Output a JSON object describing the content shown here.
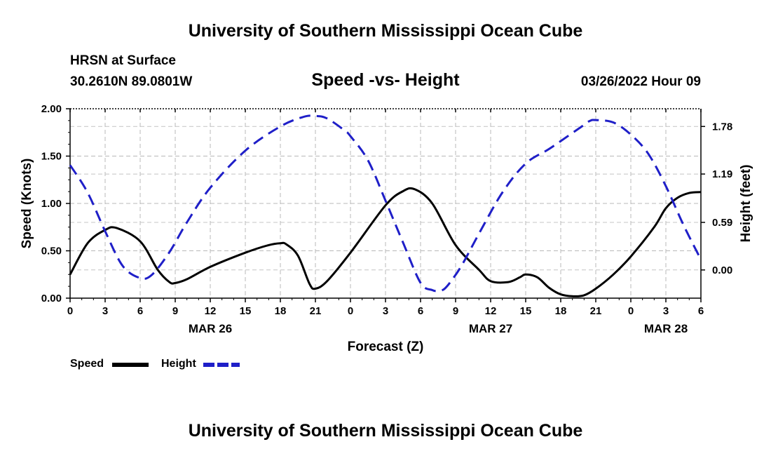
{
  "header": {
    "title": "University of Southern Mississippi Ocean Cube",
    "station": "HRSN at Surface",
    "coordinates": "30.2610N  89.0801W",
    "subtitle": "Speed -vs- Height",
    "datetime": "03/26/2022 Hour 09",
    "footer_title": "University of Southern Mississippi Ocean Cube"
  },
  "chart_data": {
    "type": "line",
    "title": "Speed -vs- Height",
    "xlabel": "Forecast (Z)",
    "ylabel": "Speed (Knots)",
    "y2label": "Height (feet)",
    "x_unit": "forecast hours from 00Z MAR 26",
    "xlim": [
      0,
      54
    ],
    "ylim": [
      0,
      2.0
    ],
    "y2lim": [
      -0.35,
      2.0
    ],
    "grid": true,
    "x_ticks": [
      0,
      3,
      6,
      9,
      12,
      15,
      18,
      21,
      24,
      27,
      30,
      33,
      36,
      39,
      42,
      45,
      48,
      51,
      54
    ],
    "x_tick_labels": [
      "0",
      "3",
      "6",
      "9",
      "12",
      "15",
      "18",
      "21",
      "0",
      "3",
      "6",
      "9",
      "12",
      "15",
      "18",
      "21",
      "0",
      "3",
      "6"
    ],
    "date_labels": [
      {
        "x": 12,
        "label": "MAR 26"
      },
      {
        "x": 36,
        "label": "MAR 27"
      },
      {
        "x": 51,
        "label": "MAR 28"
      }
    ],
    "y_ticks": [
      0,
      0.5,
      1.0,
      1.5,
      2.0
    ],
    "y_tick_labels": [
      "0.00",
      "0.50",
      "1.00",
      "1.50",
      "2.00"
    ],
    "y2_ticks": [
      0,
      0.59,
      1.19,
      1.78
    ],
    "y2_tick_labels": [
      "0.00",
      "0.59",
      "1.19",
      "1.78"
    ],
    "legend_position": "bottom-left",
    "series": [
      {
        "name": "Speed",
        "axis": "left",
        "color": "#000000",
        "style": "solid",
        "x": [
          0,
          1.5,
          3,
          4,
          6,
          7.5,
          8.5,
          9,
          10,
          12,
          15,
          17,
          18,
          18.5,
          19.5,
          20.5,
          21,
          22,
          24,
          27,
          28.5,
          29.5,
          31,
          33,
          35,
          36,
          37.5,
          38.5,
          39,
          40,
          41,
          42,
          43,
          44,
          45,
          46.5,
          48,
          50,
          51,
          52,
          53,
          54
        ],
        "values": [
          0.25,
          0.58,
          0.72,
          0.74,
          0.6,
          0.3,
          0.17,
          0.16,
          0.2,
          0.33,
          0.48,
          0.56,
          0.58,
          0.57,
          0.45,
          0.15,
          0.1,
          0.18,
          0.48,
          0.98,
          1.13,
          1.15,
          1.0,
          0.56,
          0.3,
          0.18,
          0.17,
          0.22,
          0.25,
          0.22,
          0.11,
          0.04,
          0.02,
          0.03,
          0.1,
          0.25,
          0.44,
          0.75,
          0.95,
          1.06,
          1.11,
          1.12
        ]
      },
      {
        "name": "Height",
        "axis": "right",
        "color": "#1f1fc8",
        "style": "dashed",
        "x": [
          0,
          1.5,
          3,
          4.5,
          6,
          7,
          8.5,
          10,
          12,
          15,
          18,
          20,
          21,
          22,
          23.5,
          24,
          25.5,
          27,
          28.5,
          30,
          31,
          31.5,
          32,
          32.5,
          33.5,
          35,
          37,
          39,
          41,
          43,
          44,
          44.5,
          45,
          46.5,
          48,
          49.5,
          51,
          52.5,
          54
        ],
        "values": [
          1.3,
          0.96,
          0.48,
          0.05,
          -0.1,
          -0.06,
          0.22,
          0.59,
          1.02,
          1.48,
          1.78,
          1.9,
          1.91,
          1.88,
          1.73,
          1.66,
          1.36,
          0.86,
          0.34,
          -0.16,
          -0.25,
          -0.26,
          -0.24,
          -0.16,
          0.05,
          0.45,
          0.96,
          1.32,
          1.5,
          1.7,
          1.8,
          1.85,
          1.86,
          1.83,
          1.68,
          1.44,
          1.04,
          0.56,
          0.13
        ]
      }
    ]
  }
}
